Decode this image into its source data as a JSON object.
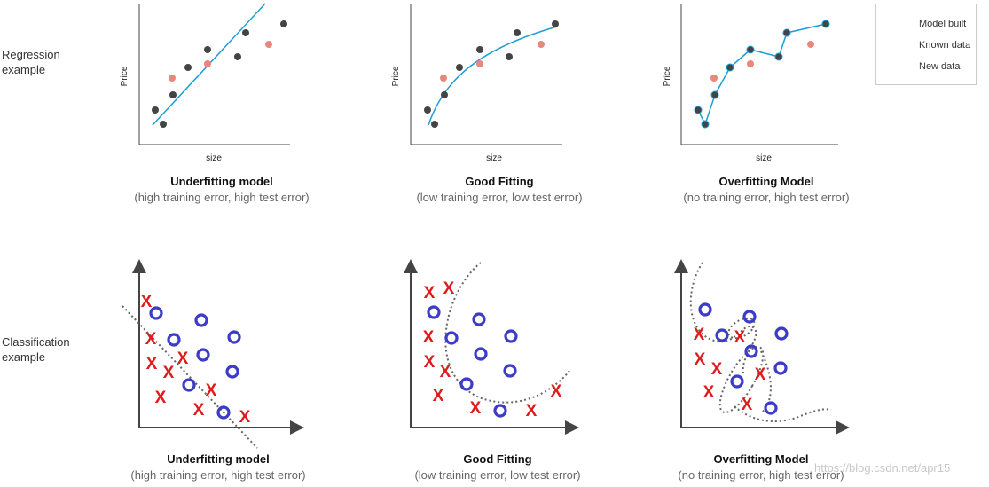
{
  "row_labels": {
    "regression": "Regression\nexample",
    "classification": "Classification\nexample"
  },
  "axes": {
    "size": "size",
    "price": "Price"
  },
  "legend": {
    "model_built": "Model built",
    "known_data": "Known data",
    "new_data": "New data"
  },
  "regression": [
    {
      "title": "Underfitting model",
      "subtitle": "(high training error, high test error)"
    },
    {
      "title": "Good Fitting",
      "subtitle": "(low training error, low test error)"
    },
    {
      "title": "Overfitting Model",
      "subtitle": "(no training error, high test error)"
    }
  ],
  "classification": [
    {
      "title": "Underfitting model",
      "subtitle": "(high training error, high test error)"
    },
    {
      "title": "Good Fitting",
      "subtitle": "(low training error, low test error)"
    },
    {
      "title": "Overfitting Model",
      "subtitle": "(no training error, high test error)"
    }
  ],
  "markers": {
    "x": "X",
    "o": "O"
  },
  "watermark": "https://blog.csdn.net/apr15",
  "colors": {
    "curve": "#1a9fd6",
    "known": "#444444",
    "new": "#e8877a",
    "cross": "#e01b1b",
    "circle": "#3c3cc8",
    "boundary": "#666666"
  }
}
